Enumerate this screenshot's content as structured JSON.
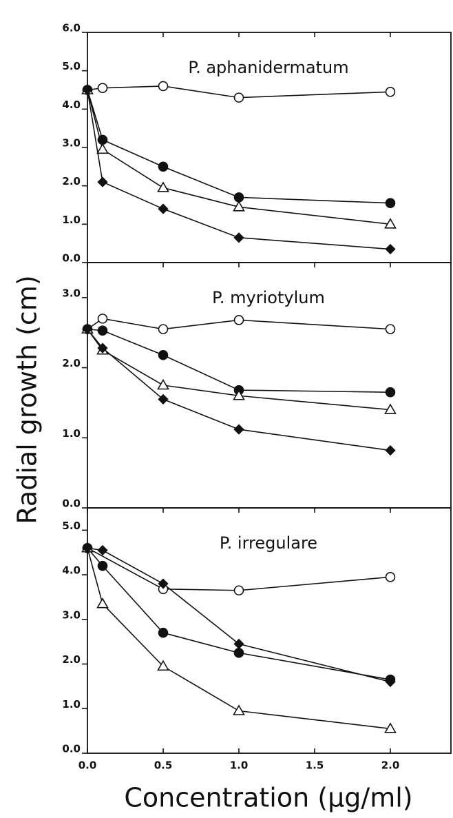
{
  "chart_data": [
    {
      "type": "line",
      "title": "P. aphanidermatum",
      "ylim": [
        0,
        6
      ],
      "yticks": [
        {
          "value": 0,
          "label": "0.0"
        },
        {
          "value": 1,
          "label": "1.0"
        },
        {
          "value": 2,
          "label": "2.0"
        },
        {
          "value": 3,
          "label": "3.0"
        },
        {
          "value": 4,
          "label": "4.0"
        },
        {
          "value": 5,
          "label": "5.0"
        },
        {
          "value": 6,
          "label": "6.0"
        }
      ],
      "series": [
        {
          "marker": "open-circle",
          "color": "#111111",
          "x": [
            0,
            0.1,
            0.5,
            1,
            2
          ],
          "values": [
            4.5,
            4.55,
            4.6,
            4.3,
            4.45
          ]
        },
        {
          "marker": "filled-circle",
          "color": "#111111",
          "x": [
            0,
            0.1,
            0.5,
            1,
            2
          ],
          "values": [
            4.5,
            3.2,
            2.5,
            1.7,
            1.55
          ]
        },
        {
          "marker": "open-triangle",
          "color": "#111111",
          "x": [
            0,
            0.1,
            0.5,
            1,
            2
          ],
          "values": [
            4.5,
            2.95,
            1.95,
            1.45,
            1.0
          ]
        },
        {
          "marker": "filled-diamond",
          "color": "#111111",
          "x": [
            0,
            0.1,
            0.5,
            1,
            2
          ],
          "values": [
            4.5,
            2.1,
            1.4,
            0.65,
            0.35
          ]
        }
      ]
    },
    {
      "type": "line",
      "title": "P. myriotylum",
      "ylabel": "Radial growth (cm)",
      "ylim": [
        0,
        3.5
      ],
      "yticks": [
        {
          "value": 0,
          "label": "0.0"
        },
        {
          "value": 1,
          "label": "1.0"
        },
        {
          "value": 2,
          "label": "2.0"
        },
        {
          "value": 3,
          "label": "3.0"
        }
      ],
      "series": [
        {
          "marker": "open-circle",
          "color": "#111111",
          "x": [
            0,
            0.1,
            0.5,
            1,
            2
          ],
          "values": [
            2.55,
            2.7,
            2.55,
            2.68,
            2.55
          ]
        },
        {
          "marker": "filled-circle",
          "color": "#111111",
          "x": [
            0,
            0.1,
            0.5,
            1,
            2
          ],
          "values": [
            2.55,
            2.53,
            2.18,
            1.68,
            1.65
          ]
        },
        {
          "marker": "open-triangle",
          "color": "#111111",
          "x": [
            0,
            0.1,
            0.5,
            1,
            2
          ],
          "values": [
            2.55,
            2.25,
            1.75,
            1.6,
            1.4
          ]
        },
        {
          "marker": "filled-diamond",
          "color": "#111111",
          "x": [
            0,
            0.1,
            0.5,
            1,
            2
          ],
          "values": [
            2.55,
            2.28,
            1.55,
            1.12,
            0.82
          ]
        }
      ]
    },
    {
      "type": "line",
      "title": "P. irregulare",
      "xlabel": "Concentration (μg/ml)",
      "xlim": [
        0,
        2.4
      ],
      "xticks": [
        {
          "value": 0,
          "label": "0.0"
        },
        {
          "value": 0.5,
          "label": "0.5"
        },
        {
          "value": 1,
          "label": "1.0"
        },
        {
          "value": 1.5,
          "label": "1.5"
        },
        {
          "value": 2,
          "label": "2.0"
        }
      ],
      "ylim": [
        0,
        5.5
      ],
      "yticks": [
        {
          "value": 0,
          "label": "0.0"
        },
        {
          "value": 1,
          "label": "1.0"
        },
        {
          "value": 2,
          "label": "2.0"
        },
        {
          "value": 3,
          "label": "3.0"
        },
        {
          "value": 4,
          "label": "4.0"
        },
        {
          "value": 5,
          "label": "5.0"
        }
      ],
      "series": [
        {
          "marker": "open-circle",
          "color": "#111111",
          "x": [
            0,
            0.5,
            1,
            2
          ],
          "values": [
            4.6,
            3.68,
            3.65,
            3.95
          ]
        },
        {
          "marker": "filled-circle",
          "color": "#111111",
          "x": [
            0,
            0.1,
            0.5,
            1,
            2
          ],
          "values": [
            4.6,
            4.2,
            2.7,
            2.25,
            1.65
          ]
        },
        {
          "marker": "open-triangle",
          "color": "#111111",
          "x": [
            0,
            0.1,
            0.5,
            1,
            2
          ],
          "values": [
            4.6,
            3.35,
            1.95,
            0.95,
            0.55
          ]
        },
        {
          "marker": "filled-diamond",
          "color": "#111111",
          "x": [
            0,
            0.1,
            0.5,
            1,
            2
          ],
          "values": [
            4.6,
            4.55,
            3.8,
            2.45,
            1.6
          ]
        }
      ]
    }
  ]
}
